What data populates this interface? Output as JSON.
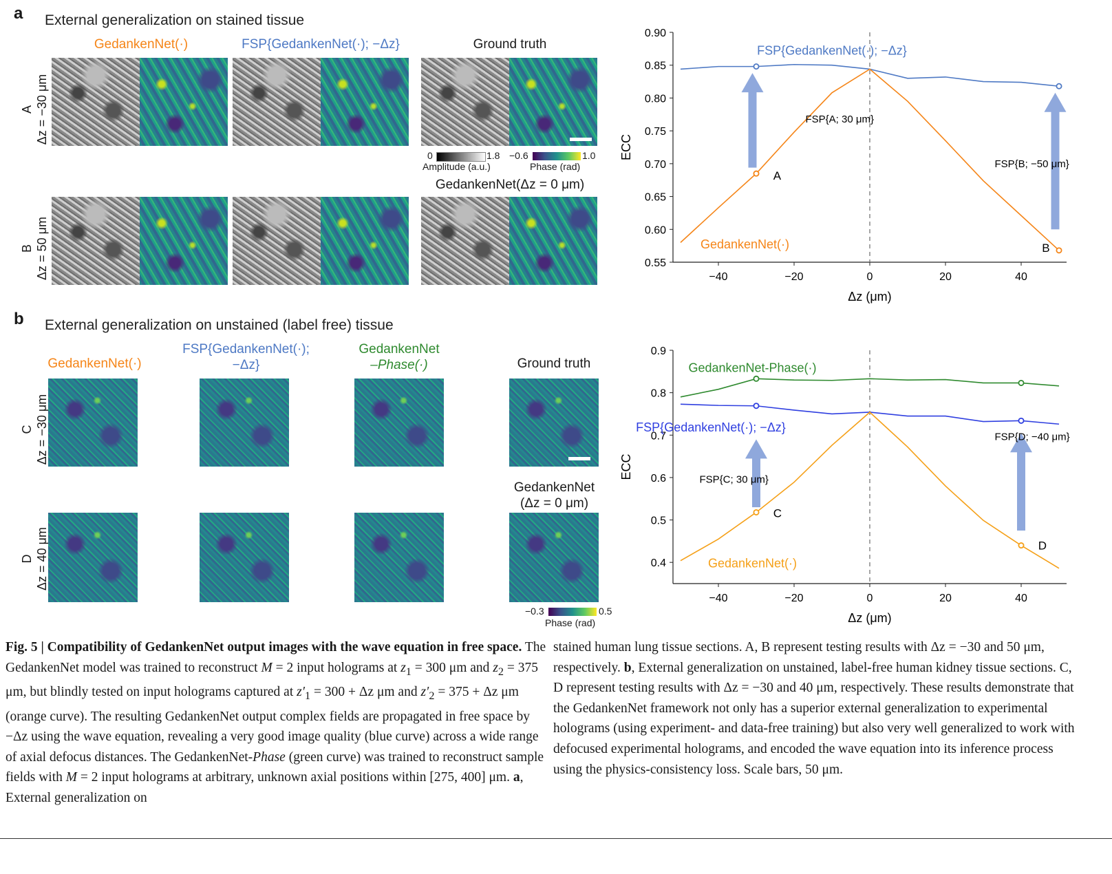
{
  "panel_a": {
    "letter": "a",
    "title": "External generalization on stained tissue",
    "col_gedanken": "GedankenNet(·)",
    "col_fsp": "FSP{GedankenNet(·); −Δz}",
    "col_gt": "Ground truth",
    "gt_lower_label": "GedankenNet(Δz = 0 μm)",
    "row_a_letter": "A",
    "row_a_dz": "Δz = −30 μm",
    "row_b_letter": "B",
    "row_b_dz": "Δz = 50 μm",
    "amp_min": "0",
    "amp_max": "1.8",
    "amp_label": "Amplitude (a.u.)",
    "phase_min": "−0.6",
    "phase_max": "1.0",
    "phase_label": "Phase (rad)"
  },
  "panel_b": {
    "letter": "b",
    "title": "External generalization on unstained (label free) tissue",
    "col_gedanken": "GedankenNet(·)",
    "col_fsp_l1": "FSP{GedankenNet(·);",
    "col_fsp_l2": "−Δz}",
    "col_phase_l1": "GedankenNet",
    "col_phase_l2": "–Phase(·)",
    "col_gt": "Ground truth",
    "gt_lower_l1": "GedankenNet",
    "gt_lower_l2": "(Δz = 0 μm)",
    "row_c_letter": "C",
    "row_c_dz": "Δz = −30 μm",
    "row_d_letter": "D",
    "row_d_dz": "Δz = 40 μm",
    "phase_min": "−0.3",
    "phase_max": "0.5",
    "phase_label": "Phase (rad)"
  },
  "colors": {
    "orange": "#f58518",
    "blue_a": "#4e79c4",
    "blue_b": "#2f3fe0",
    "green": "#2f8a2f",
    "arrow": "#8fa8dc"
  },
  "chart_data": [
    {
      "type": "line",
      "title": "",
      "xlabel": "Δz (μm)",
      "ylabel": "ECC",
      "xlim": [
        -52,
        52
      ],
      "ylim": [
        0.55,
        0.9
      ],
      "xticks": [
        -40,
        -20,
        0,
        20,
        40
      ],
      "xtick_labels": [
        "−40",
        "−20",
        "0",
        "20",
        "40"
      ],
      "yticks": [
        0.55,
        0.6,
        0.65,
        0.7,
        0.75,
        0.8,
        0.85,
        0.9
      ],
      "ytick_labels": [
        "0.55",
        "0.60",
        "0.65",
        "0.70",
        "0.75",
        "0.80",
        "0.85",
        "0.90"
      ],
      "x": [
        -50,
        -40,
        -30,
        -20,
        -10,
        0,
        10,
        20,
        30,
        40,
        50
      ],
      "series": [
        {
          "name": "FSP{GedankenNet(·); −Δz}",
          "color": "#4e79c4",
          "values": [
            0.844,
            0.848,
            0.848,
            0.851,
            0.85,
            0.844,
            0.83,
            0.832,
            0.825,
            0.824,
            0.818
          ]
        },
        {
          "name": "GedankenNet(·)",
          "color": "#f58518",
          "values": [
            0.58,
            0.633,
            0.685,
            0.748,
            0.808,
            0.844,
            0.795,
            0.735,
            0.674,
            0.621,
            0.568
          ]
        }
      ],
      "markers": [
        {
          "series": 0,
          "x": -30,
          "y": 0.848
        },
        {
          "series": 0,
          "x": 50,
          "y": 0.818
        },
        {
          "series": 1,
          "x": -30,
          "y": 0.685
        },
        {
          "series": 1,
          "x": 50,
          "y": 0.568
        }
      ],
      "point_labels": [
        {
          "text": "A",
          "x": -25.5,
          "y": 0.682
        },
        {
          "text": "B",
          "x": 45.5,
          "y": 0.572
        }
      ],
      "annotations": [
        {
          "text": "FSP{A; 30 μm}",
          "x": -17,
          "y": 0.768
        },
        {
          "text": "FSP{B; −50 μm}",
          "x": 33,
          "y": 0.7
        }
      ],
      "arrows": [
        {
          "x": -31,
          "from": 0.694,
          "to": 0.838
        },
        {
          "x": 49,
          "from": 0.6,
          "to": 0.808
        }
      ],
      "legend_labels": [
        {
          "text": "FSP{GedankenNet(·); −Δz}",
          "x": -10,
          "y": 0.872,
          "color": "#4e79c4"
        },
        {
          "text": "GedankenNet(·)",
          "x": -33,
          "y": 0.577,
          "color": "#f58518"
        }
      ],
      "vline": 0
    },
    {
      "type": "line",
      "title": "",
      "xlabel": "Δz (μm)",
      "ylabel": "ECC",
      "xlim": [
        -52,
        52
      ],
      "ylim": [
        0.35,
        0.9
      ],
      "xticks": [
        -40,
        -20,
        0,
        20,
        40
      ],
      "xtick_labels": [
        "−40",
        "−20",
        "0",
        "20",
        "40"
      ],
      "yticks": [
        0.4,
        0.5,
        0.6,
        0.7,
        0.8,
        0.9
      ],
      "ytick_labels": [
        "0.4",
        "0.5",
        "0.6",
        "0.7",
        "0.8",
        "0.9"
      ],
      "x": [
        -50,
        -40,
        -30,
        -20,
        -10,
        0,
        10,
        20,
        30,
        40,
        50
      ],
      "series": [
        {
          "name": "GedankenNet-Phase(·)",
          "color": "#2f8a2f",
          "values": [
            0.79,
            0.808,
            0.833,
            0.83,
            0.829,
            0.833,
            0.83,
            0.831,
            0.823,
            0.823,
            0.816
          ]
        },
        {
          "name": "FSP{GedankenNet(·); −Δz}",
          "color": "#2f3fe0",
          "values": [
            0.773,
            0.77,
            0.769,
            0.759,
            0.75,
            0.754,
            0.745,
            0.745,
            0.732,
            0.734,
            0.726
          ]
        },
        {
          "name": "GedankenNet(·)",
          "color": "#f5a018",
          "values": [
            0.404,
            0.455,
            0.518,
            0.589,
            0.676,
            0.754,
            0.672,
            0.58,
            0.499,
            0.44,
            0.386
          ]
        }
      ],
      "markers": [
        {
          "series": 0,
          "x": -30,
          "y": 0.833
        },
        {
          "series": 0,
          "x": 40,
          "y": 0.823
        },
        {
          "series": 1,
          "x": -30,
          "y": 0.769
        },
        {
          "series": 1,
          "x": 40,
          "y": 0.734
        },
        {
          "series": 2,
          "x": -30,
          "y": 0.518
        },
        {
          "series": 2,
          "x": 40,
          "y": 0.44
        }
      ],
      "point_labels": [
        {
          "text": "C",
          "x": -25.5,
          "y": 0.516
        },
        {
          "text": "D",
          "x": 44.5,
          "y": 0.44
        }
      ],
      "annotations": [
        {
          "text": "FSP{C; 30 μm}",
          "x": -45,
          "y": 0.596
        },
        {
          "text": "FSP{D; −40 μm}",
          "x": 33,
          "y": 0.696
        }
      ],
      "arrows": [
        {
          "x": -30,
          "from": 0.53,
          "to": 0.69
        },
        {
          "x": 40,
          "from": 0.475,
          "to": 0.705
        }
      ],
      "legend_labels": [
        {
          "text": "GedankenNet-Phase(·)",
          "x": -31,
          "y": 0.859,
          "color": "#2f8a2f"
        },
        {
          "text": "FSP{GedankenNet(·); −Δz}",
          "x": -42,
          "y": 0.718,
          "color": "#2f3fe0"
        },
        {
          "text": "GedankenNet(·)",
          "x": -31,
          "y": 0.398,
          "color": "#f5a018"
        }
      ],
      "vline": 0
    }
  ],
  "caption": {
    "left_bold": "Fig. 5 | Compatibility of GedankenNet output images with the wave equation in free space.",
    "left_1": " The GedankenNet model was trained to reconstruct ",
    "left_M": "M",
    "left_2": " = 2 input holograms at ",
    "left_z1": "z",
    "left_sub1": "1",
    "left_3": " = 300 μm and ",
    "left_z2": "z",
    "left_sub2": "2",
    "left_4": " = 375 μm, but blindly tested on input holograms captured at ",
    "left_z1p": "z′",
    "left_5": " = 300 + Δz μm and ",
    "left_z2p": "z′",
    "left_6": " = 375 + Δz μm (orange curve). The resulting GedankenNet output complex fields are propagated in free space by −Δz using the wave equation, revealing a very good image quality (blue curve) across a wide range of axial defocus distances. The GedankenNet-",
    "left_phase": "Phase",
    "left_7": " (green curve) was trained to reconstruct sample fields with ",
    "left_8": " = 2 input holograms at arbitrary, unknown axial positions within [275, 400] μm. ",
    "left_a": "a",
    "left_9": ", External generalization on",
    "right_1": "stained human lung tissue sections. A, B represent testing results with Δz = −30 and 50 μm, respectively. ",
    "right_b": "b",
    "right_2": ", External generalization on unstained, label-free human kidney tissue sections. C, D represent testing results with Δz = −30 and 40 μm, respectively. These results demonstrate that the GedankenNet framework not only has a superior external generalization to experimental holograms (using experiment- and data-free training) but also very well generalized to work with defocused experimental holograms, and encoded the wave equation into its inference process using the physics-consistency loss. Scale bars, 50 μm."
  }
}
